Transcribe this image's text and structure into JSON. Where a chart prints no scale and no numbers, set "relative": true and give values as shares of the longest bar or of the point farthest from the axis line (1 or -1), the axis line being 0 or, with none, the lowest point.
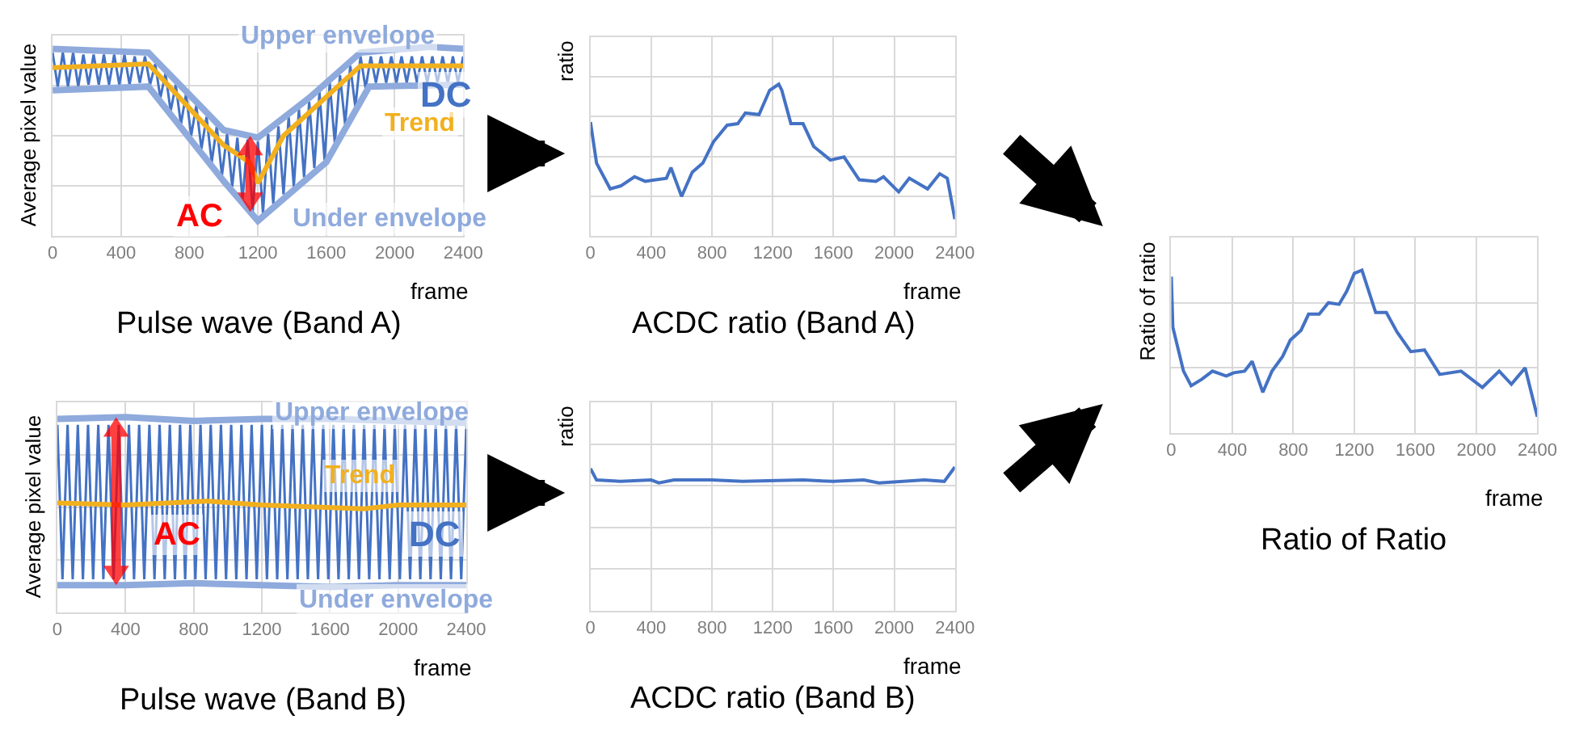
{
  "chart_data": [
    {
      "type": "line",
      "title": "Pulse wave (Band A)",
      "xlabel": "frame",
      "ylabel": "Average pixel value",
      "relative": true,
      "xlim": [
        0,
        2400
      ],
      "xticks": [
        0,
        400,
        800,
        1200,
        1600,
        2000,
        2400
      ],
      "grid": true,
      "tick_labels": "x",
      "annotations": [
        {
          "text": "AC",
          "x": 860,
          "y": 0.1
        },
        {
          "text": "DC",
          "x": 2300,
          "y": 0.75
        }
      ],
      "series": [
        {
          "color": "#4472c4",
          "x": [
            0,
            30,
            60,
            90,
            120,
            150,
            180,
            210,
            240,
            270,
            300,
            330,
            360,
            390,
            420,
            450,
            480,
            510,
            540,
            570,
            600,
            630,
            660,
            690,
            720,
            750,
            780,
            810,
            840,
            870,
            900,
            930,
            960,
            990,
            1020,
            1050,
            1080,
            1110,
            1140,
            1170,
            1200,
            1230,
            1260,
            1290,
            1320,
            1350,
            1380,
            1410,
            1440,
            1470,
            1500,
            1530,
            1560,
            1590,
            1620,
            1650,
            1680,
            1710,
            1740,
            1770,
            1800,
            1830,
            1860,
            1890,
            1920,
            1950,
            1980,
            2010,
            2040,
            2070,
            2100,
            2130,
            2160,
            2190,
            2220,
            2250,
            2280,
            2310,
            2340,
            2370,
            2400
          ],
          "values": [
            0.97,
            0.79,
            0.97,
            0.79,
            0.97,
            0.79,
            0.96,
            0.8,
            0.96,
            0.8,
            0.96,
            0.8,
            0.96,
            0.8,
            0.96,
            0.8,
            0.95,
            0.81,
            0.95,
            0.8,
            0.91,
            0.73,
            0.86,
            0.66,
            0.8,
            0.59,
            0.75,
            0.53,
            0.69,
            0.46,
            0.63,
            0.39,
            0.58,
            0.32,
            0.54,
            0.26,
            0.52,
            0.19,
            0.51,
            0.13,
            0.5,
            0.12,
            0.54,
            0.17,
            0.58,
            0.22,
            0.63,
            0.26,
            0.67,
            0.31,
            0.71,
            0.36,
            0.76,
            0.4,
            0.81,
            0.49,
            0.85,
            0.59,
            0.9,
            0.68,
            0.95,
            0.78,
            0.95,
            0.81,
            0.95,
            0.81,
            0.95,
            0.81,
            0.95,
            0.81,
            0.95,
            0.81,
            0.95,
            0.81,
            0.95,
            0.81,
            0.95,
            0.81,
            0.95,
            0.81,
            0.95
          ]
        },
        {
          "name": "Upper envelope",
          "color": "#8faadc",
          "x": [
            0,
            560,
            1000,
            1200,
            1500,
            1800,
            2200,
            2400
          ],
          "values": [
            0.99,
            0.97,
            0.56,
            0.52,
            0.73,
            0.97,
            1.0,
            0.99
          ]
        },
        {
          "name": "Under envelope",
          "color": "#8faadc",
          "x": [
            0,
            560,
            1000,
            1200,
            1600,
            1850,
            2400
          ],
          "values": [
            0.77,
            0.79,
            0.29,
            0.08,
            0.39,
            0.79,
            0.8
          ]
        },
        {
          "name": "Trend",
          "color": "#f2b01e",
          "x": [
            0,
            560,
            1000,
            1150,
            1200,
            1350,
            1800,
            2400
          ],
          "values": [
            0.89,
            0.91,
            0.48,
            0.39,
            0.28,
            0.53,
            0.9,
            0.9
          ]
        }
      ]
    },
    {
      "type": "line",
      "title": "Pulse wave (Band B)",
      "xlabel": "frame",
      "ylabel": "Average pixel value",
      "relative": true,
      "xlim": [
        0,
        2400
      ],
      "xticks": [
        0,
        400,
        800,
        1200,
        1600,
        2000,
        2400
      ],
      "grid": true,
      "tick_labels": "x",
      "annotations": [
        {
          "text": "AC",
          "x": 700,
          "y": 0.4
        },
        {
          "text": "DC",
          "x": 2210,
          "y": 0.4
        }
      ],
      "series": [
        {
          "color": "#4472c4",
          "x": [
            0,
            30,
            60,
            90,
            120,
            150,
            180,
            210,
            240,
            270,
            300,
            330,
            360,
            390,
            420,
            450,
            480,
            510,
            540,
            570,
            600,
            630,
            660,
            690,
            720,
            750,
            780,
            810,
            840,
            870,
            900,
            930,
            960,
            990,
            1020,
            1050,
            1080,
            1110,
            1140,
            1170,
            1200,
            1230,
            1260,
            1290,
            1320,
            1350,
            1380,
            1410,
            1440,
            1470,
            1500,
            1530,
            1560,
            1590,
            1620,
            1650,
            1680,
            1710,
            1740,
            1770,
            1800,
            1830,
            1860,
            1890,
            1920,
            1950,
            1980,
            2010,
            2040,
            2070,
            2100,
            2130,
            2160,
            2190,
            2220,
            2250,
            2280,
            2310,
            2340,
            2370,
            2400
          ],
          "values": [
            0.96,
            0.17,
            0.96,
            0.17,
            0.96,
            0.17,
            0.96,
            0.17,
            0.96,
            0.17,
            0.96,
            0.17,
            0.96,
            0.17,
            0.96,
            0.17,
            0.96,
            0.17,
            0.96,
            0.17,
            0.96,
            0.17,
            0.96,
            0.17,
            0.96,
            0.17,
            0.96,
            0.17,
            0.96,
            0.17,
            0.96,
            0.17,
            0.96,
            0.17,
            0.96,
            0.17,
            0.96,
            0.17,
            0.96,
            0.17,
            0.96,
            0.17,
            0.96,
            0.17,
            0.96,
            0.17,
            0.96,
            0.17,
            0.96,
            0.17,
            0.96,
            0.17,
            0.96,
            0.17,
            0.96,
            0.17,
            0.96,
            0.17,
            0.96,
            0.17,
            0.96,
            0.17,
            0.96,
            0.17,
            0.96,
            0.17,
            0.96,
            0.17,
            0.96,
            0.17,
            0.96,
            0.17,
            0.96,
            0.17,
            0.96,
            0.17,
            0.96,
            0.17,
            0.96,
            0.17,
            0.96
          ]
        },
        {
          "name": "Upper envelope",
          "color": "#8faadc",
          "x": [
            0,
            400,
            800,
            1200,
            1600,
            2000,
            2400
          ],
          "values": [
            0.99,
            1.0,
            0.98,
            0.99,
            0.99,
            0.98,
            0.97
          ]
        },
        {
          "name": "Under envelope",
          "color": "#8faadc",
          "x": [
            0,
            400,
            800,
            1200,
            1600,
            2000,
            2400
          ],
          "values": [
            0.14,
            0.14,
            0.15,
            0.14,
            0.13,
            0.14,
            0.14
          ]
        },
        {
          "name": "Trend",
          "color": "#f2b01e",
          "x": [
            0,
            400,
            880,
            1200,
            1800,
            2000,
            2400
          ],
          "values": [
            0.56,
            0.55,
            0.57,
            0.55,
            0.53,
            0.55,
            0.55
          ]
        }
      ]
    },
    {
      "type": "line",
      "title": "ACDC ratio (Band A)",
      "xlabel": "frame",
      "ylabel": "ratio",
      "relative": true,
      "xlim": [
        0,
        2400
      ],
      "xticks": [
        0,
        400,
        800,
        1200,
        1600,
        2000,
        2400
      ],
      "grid": true,
      "tick_labels": "x",
      "series": [
        {
          "color": "#4472c4",
          "x": [
            0,
            40,
            130,
            200,
            290,
            360,
            430,
            500,
            530,
            600,
            670,
            740,
            810,
            900,
            970,
            1020,
            1110,
            1180,
            1240,
            1260,
            1320,
            1400,
            1470,
            1580,
            1670,
            1770,
            1880,
            1930,
            2030,
            2100,
            2220,
            2300,
            2350,
            2400
          ],
          "values": [
            0.75,
            0.48,
            0.31,
            0.33,
            0.39,
            0.36,
            0.37,
            0.38,
            0.45,
            0.26,
            0.42,
            0.48,
            0.62,
            0.73,
            0.74,
            0.81,
            0.8,
            0.96,
            1,
            0.96,
            0.74,
            0.74,
            0.59,
            0.5,
            0.52,
            0.37,
            0.36,
            0.39,
            0.29,
            0.38,
            0.31,
            0.41,
            0.38,
            0.11
          ]
        }
      ]
    },
    {
      "type": "line",
      "title": "ACDC ratio (Band B)",
      "xlabel": "frame",
      "ylabel": "ratio",
      "relative": true,
      "xlim": [
        0,
        2400
      ],
      "xticks": [
        0,
        400,
        800,
        1200,
        1600,
        2000,
        2400
      ],
      "grid": true,
      "tick_labels": "x",
      "series": [
        {
          "color": "#4472c4",
          "x": [
            0,
            40,
            200,
            400,
            450,
            550,
            800,
            1000,
            1400,
            1600,
            1800,
            1900,
            2200,
            2330,
            2400
          ],
          "values": [
            0.99,
            0.91,
            0.9,
            0.91,
            0.89,
            0.91,
            0.91,
            0.9,
            0.91,
            0.9,
            0.91,
            0.89,
            0.91,
            0.9,
            1.0
          ]
        }
      ]
    },
    {
      "type": "line",
      "title": "Ratio of Ratio",
      "xlabel": "frame",
      "ylabel": "Ratio of ratio",
      "relative": true,
      "xlim": [
        0,
        2400
      ],
      "xticks": [
        0,
        400,
        800,
        1200,
        1600,
        2000,
        2400
      ],
      "grid": true,
      "tick_labels": "x",
      "series": [
        {
          "color": "#4472c4",
          "x": [
            0,
            10,
            80,
            130,
            200,
            270,
            360,
            410,
            480,
            530,
            600,
            660,
            730,
            780,
            850,
            900,
            970,
            1030,
            1100,
            1150,
            1200,
            1250,
            1340,
            1410,
            1480,
            1570,
            1660,
            1760,
            1900,
            2040,
            2150,
            2230,
            2320,
            2400
          ],
          "values": [
            0.96,
            0.65,
            0.38,
            0.29,
            0.33,
            0.38,
            0.35,
            0.37,
            0.38,
            0.44,
            0.25,
            0.38,
            0.47,
            0.57,
            0.63,
            0.73,
            0.73,
            0.8,
            0.79,
            0.87,
            0.98,
            1,
            0.74,
            0.74,
            0.62,
            0.5,
            0.51,
            0.36,
            0.38,
            0.28,
            0.38,
            0.3,
            0.4,
            0.1
          ]
        }
      ]
    }
  ]
}
